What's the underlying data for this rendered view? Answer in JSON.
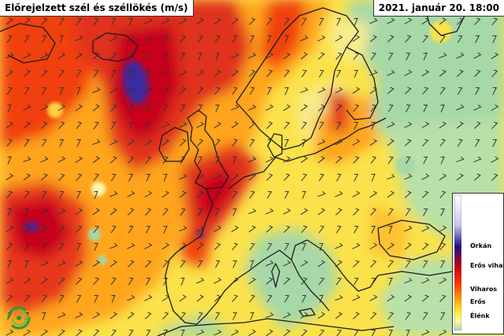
{
  "title": "Előrejelzett szél és széllökés (m/s)",
  "date": "2021. január 20. 18:00",
  "legend": {
    "labels": [
      "Orkán",
      "Erős vihar",
      "Viharos",
      "Erős",
      "Élénk"
    ],
    "colors": [
      "#ffffff",
      "#c8c8f0",
      "#1a0f8c",
      "#c00010",
      "#ff3a00",
      "#ff9a00",
      "#ffee30",
      "#fff9a0",
      "#a8dca8"
    ]
  },
  "colors": {
    "sea_light": "#f7ec8c",
    "calm": "#a6d8a8",
    "moderate": "#fbe24a",
    "strong": "#ffa51e",
    "storm": "#f04010",
    "severe": "#c8001c",
    "hurricane": "#3a2aa0",
    "coastline": "#1a1a1a",
    "wind_barb": "#333333"
  },
  "logo_icon": "swirl-logo-icon"
}
